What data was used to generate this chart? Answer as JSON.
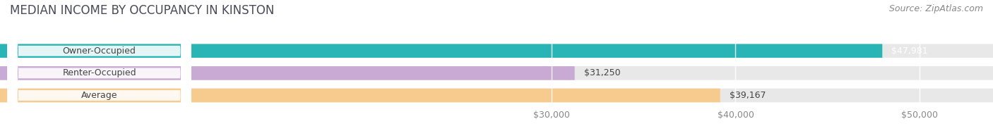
{
  "title": "MEDIAN INCOME BY OCCUPANCY IN KINSTON",
  "source": "Source: ZipAtlas.com",
  "categories": [
    "Owner-Occupied",
    "Renter-Occupied",
    "Average"
  ],
  "values": [
    47981,
    31250,
    39167
  ],
  "bar_colors": [
    "#29b5b5",
    "#c9aad4",
    "#f7ca8e"
  ],
  "label_values": [
    "$47,981",
    "$31,250",
    "$39,167"
  ],
  "x_ticks": [
    30000,
    40000,
    50000
  ],
  "x_tick_labels": [
    "$30,000",
    "$40,000",
    "$50,000"
  ],
  "xlim_min": 0,
  "xlim_max": 54000,
  "bg_bar_color": "#e8e8e8",
  "title_color": "#4a4a5a",
  "source_color": "#888888",
  "label_color": "#444444",
  "value_color": "#444444",
  "tick_color": "#888888",
  "title_fontsize": 12,
  "source_fontsize": 9,
  "label_fontsize": 9,
  "tick_fontsize": 9,
  "bar_height": 0.62,
  "fig_bg": "#ffffff",
  "ax_bg": "#ffffff"
}
